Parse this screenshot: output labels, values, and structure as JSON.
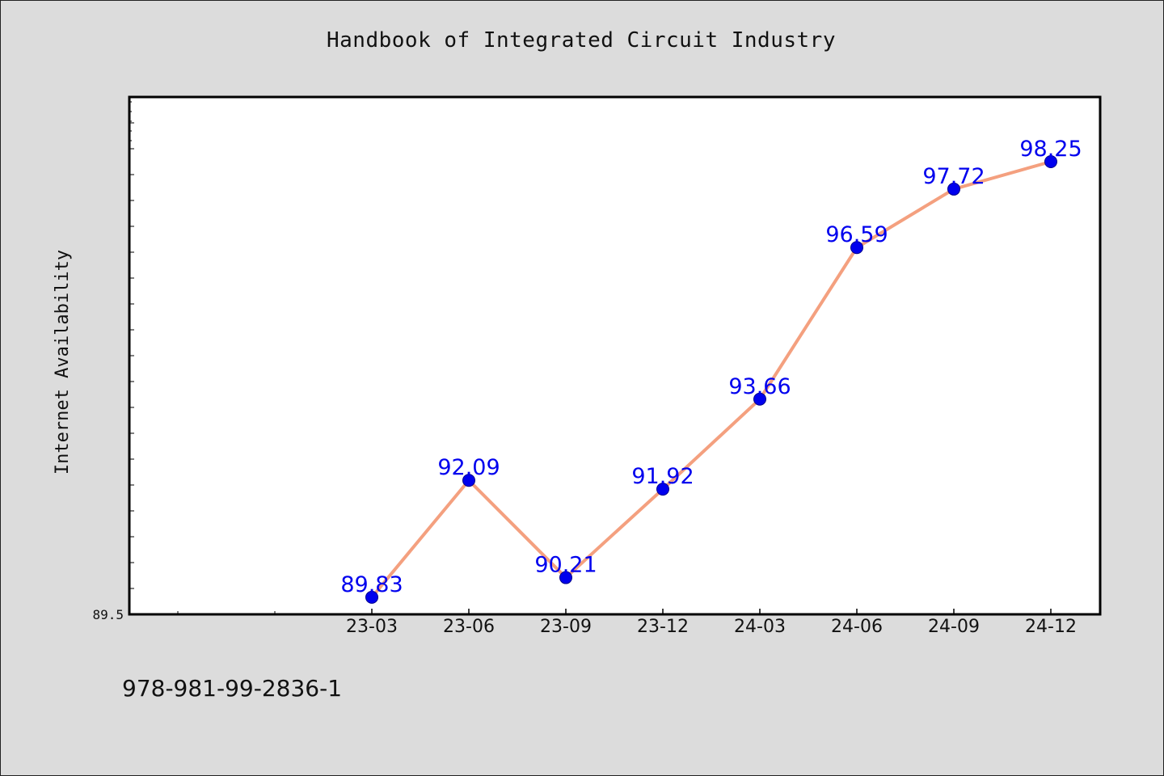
{
  "page": {
    "isbn": "978-981-99-2836-1"
  },
  "chart_data": {
    "type": "line",
    "title": "Handbook of Integrated Circuit Industry",
    "xlabel": "",
    "ylabel": "Internet Availability",
    "categories": [
      "23-03",
      "23-06",
      "23-09",
      "23-12",
      "24-03",
      "24-06",
      "24-09",
      "24-12"
    ],
    "series": [
      {
        "values": [
          89.83,
          92.09,
          90.21,
          91.92,
          93.66,
          96.59,
          97.72,
          98.25
        ],
        "line_color": "#f4a07f",
        "marker_color": "#0000ee",
        "label_color": "#0000ee"
      }
    ],
    "y_tick_labels": [
      "89.5"
    ],
    "ylim": [
      89.5,
      99.5
    ],
    "grid": false,
    "data_labels": true,
    "background": "#dcdcdc",
    "plot_background": "#ffffff"
  }
}
